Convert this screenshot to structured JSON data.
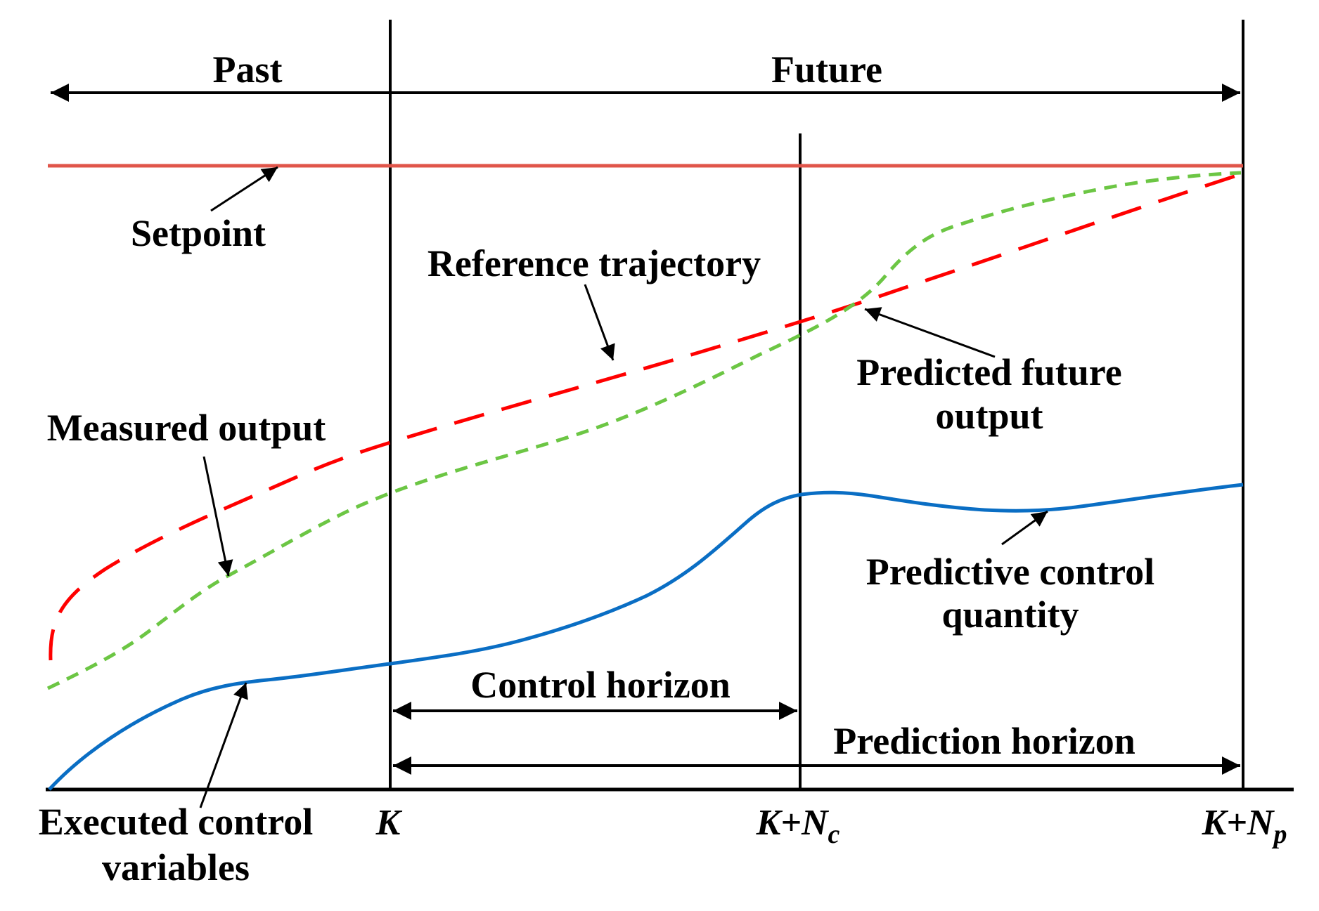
{
  "labels": {
    "past": "Past",
    "future": "Future",
    "setpoint": "Setpoint",
    "reference_trajectory": "Reference trajectory",
    "measured_output": "Measured output",
    "predicted_future_output_line1": "Predicted future",
    "predicted_future_output_line2": "output",
    "predictive_control_quantity_line1": "Predictive control",
    "predictive_control_quantity_line2": "quantity",
    "executed_control_variables_line1": "Executed control",
    "executed_control_variables_line2": "variables",
    "control_horizon": "Control horizon",
    "prediction_horizon": "Prediction horizon"
  },
  "ticks": {
    "k": {
      "main": "K",
      "sub": ""
    },
    "k_nc": {
      "main": "K+N",
      "sub": "c"
    },
    "k_np": {
      "main": "K+N",
      "sub": "p"
    }
  },
  "colors": {
    "setpoint": "#e0554a",
    "reference_trajectory": "#ff0000",
    "predicted_output": "#6cc644",
    "control_quantity": "#0a6ec4",
    "axis": "#000000"
  }
}
